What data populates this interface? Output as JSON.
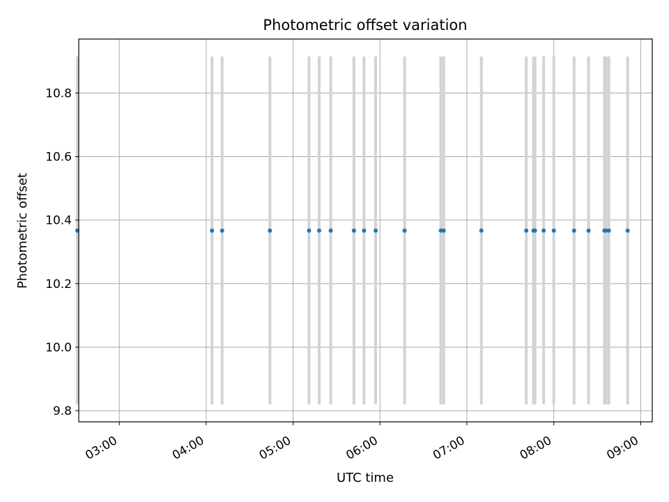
{
  "chart_data": {
    "type": "scatter",
    "title": "Photometric offset variation",
    "xlabel": "UTC time",
    "ylabel": "Photometric offset",
    "xlim": [
      "02:32",
      "09:08"
    ],
    "ylim": [
      9.765,
      10.97
    ],
    "grid": true,
    "x_ticks": [
      "03:00",
      "04:00",
      "05:00",
      "06:00",
      "07:00",
      "08:00",
      "09:00"
    ],
    "y_ticks": [
      "9.8",
      "10.0",
      "10.2",
      "10.4",
      "10.6",
      "10.8"
    ],
    "error_range": [
      9.82,
      10.915
    ],
    "colors": {
      "points": "#1f77b4",
      "error_bars": "#d3d3d3",
      "grid": "#b0b0b0"
    },
    "series": [
      {
        "x": [
          "02:31",
          "04:04",
          "04:11",
          "04:44",
          "05:11",
          "05:18",
          "05:26",
          "05:42",
          "05:49",
          "05:57",
          "06:17",
          "06:42",
          "06:44",
          "07:10",
          "07:41",
          "07:46",
          "07:47",
          "07:53",
          "08:00",
          "08:14",
          "08:24",
          "08:35",
          "08:36",
          "08:38",
          "08:51"
        ],
        "y": [
          10.367,
          10.367,
          10.367,
          10.367,
          10.367,
          10.367,
          10.367,
          10.367,
          10.367,
          10.367,
          10.367,
          10.367,
          10.367,
          10.367,
          10.367,
          10.367,
          10.367,
          10.367,
          10.367,
          10.367,
          10.367,
          10.367,
          10.367,
          10.367,
          10.367
        ]
      }
    ]
  }
}
